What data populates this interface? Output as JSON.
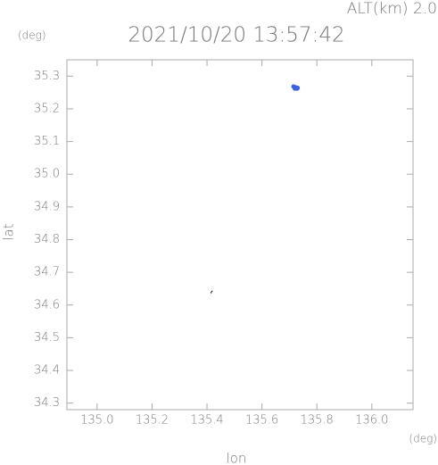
{
  "chart_data": {
    "type": "scatter",
    "title": "2021/10/20 13:57:42",
    "annotation": "ALT(km) 2.0",
    "y_unit": "(deg)",
    "x_unit": "(deg)",
    "x_label": "lon",
    "y_label": "lat",
    "xlim": [
      134.89,
      136.15
    ],
    "ylim": [
      34.28,
      35.35
    ],
    "xticks": [
      {
        "value": 135,
        "label": "135.0"
      },
      135.2,
      135.4,
      135.6,
      135.8,
      {
        "value": 136,
        "label": "136.0"
      }
    ],
    "yticks": [
      34.3,
      34.4,
      34.5,
      34.6,
      34.7,
      34.8,
      34.9,
      {
        "value": 35,
        "label": "35.0"
      },
      35.1,
      35.2,
      35.3
    ],
    "series": [
      {
        "color": "#3b62e0",
        "x": [
          135.715,
          135.72,
          135.725,
          135.73,
          135.72,
          135.728
        ],
        "y": [
          35.268,
          35.266,
          35.265,
          35.264,
          35.262,
          35.262
        ]
      },
      {
        "color": "#222222",
        "x": [
          135.415,
          135.418
        ],
        "y": [
          34.638,
          34.642
        ]
      }
    ]
  }
}
